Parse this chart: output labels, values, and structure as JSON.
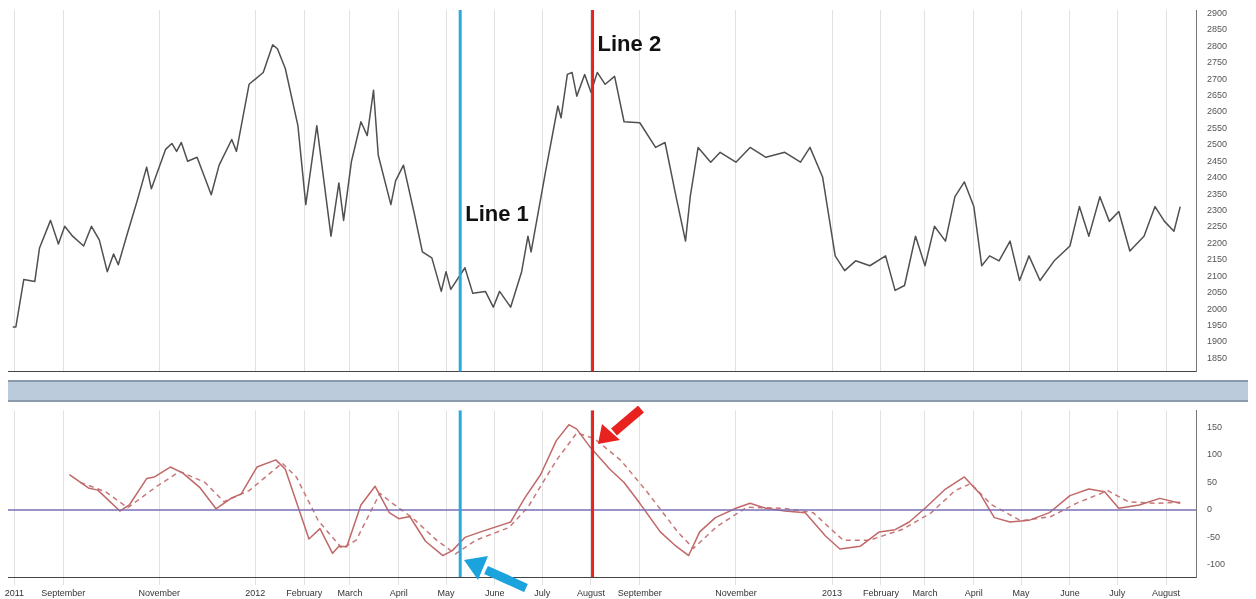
{
  "chart_data": [
    {
      "type": "line",
      "xlim": [
        "2011-07-28",
        "2013-08-20"
      ],
      "ylim": [
        1810,
        2910
      ],
      "xticks": [
        {
          "value": "2011-08-01",
          "label": null
        },
        {
          "value": "2011-09-01",
          "label": null
        },
        {
          "value": "2011-11-01",
          "label": null
        },
        {
          "value": "2012-01-01",
          "label": null
        },
        {
          "value": "2012-02-01",
          "label": null
        },
        {
          "value": "2012-03-01",
          "label": null
        },
        {
          "value": "2012-04-01",
          "label": null
        },
        {
          "value": "2012-05-01",
          "label": null
        },
        {
          "value": "2012-06-01",
          "label": null
        },
        {
          "value": "2012-07-01",
          "label": null
        },
        {
          "value": "2012-08-01",
          "label": null
        },
        {
          "value": "2012-09-01",
          "label": null
        },
        {
          "value": "2012-11-01",
          "label": null
        },
        {
          "value": "2013-01-01",
          "label": null
        },
        {
          "value": "2013-02-01",
          "label": null
        },
        {
          "value": "2013-03-01",
          "label": null
        },
        {
          "value": "2013-04-01",
          "label": null
        },
        {
          "value": "2013-05-01",
          "label": null
        },
        {
          "value": "2013-06-01",
          "label": null
        },
        {
          "value": "2013-07-01",
          "label": null
        },
        {
          "value": "2013-08-01",
          "label": null
        }
      ],
      "yticks": [
        1850,
        1900,
        1950,
        2000,
        2050,
        2100,
        2150,
        2200,
        2250,
        2300,
        2350,
        2400,
        2450,
        2500,
        2550,
        2600,
        2650,
        2700,
        2750,
        2800,
        2850,
        2900
      ],
      "tick_labels": "y",
      "grid": "x",
      "legend": false,
      "marker": "none",
      "series": [
        {
          "color": "#505050",
          "x": [
            "2011-07-31",
            "2011-08-02",
            "2011-08-07",
            "2011-08-14",
            "2011-08-17",
            "2011-08-24",
            "2011-08-29",
            "2011-09-02",
            "2011-09-07",
            "2011-09-14",
            "2011-09-19",
            "2011-09-24",
            "2011-09-29",
            "2011-10-03",
            "2011-10-06",
            "2011-10-12",
            "2011-10-18",
            "2011-10-24",
            "2011-10-27",
            "2011-11-05",
            "2011-11-09",
            "2011-11-12",
            "2011-11-15",
            "2011-11-19",
            "2011-11-25",
            "2011-12-04",
            "2011-12-09",
            "2011-12-17",
            "2011-12-20",
            "2011-12-28",
            "2012-01-06",
            "2012-01-12",
            "2012-01-15",
            "2012-01-20",
            "2012-01-28",
            "2012-02-02",
            "2012-02-09",
            "2012-02-18",
            "2012-02-23",
            "2012-02-26",
            "2012-03-02",
            "2012-03-08",
            "2012-03-12",
            "2012-03-16",
            "2012-03-19",
            "2012-03-27",
            "2012-03-30",
            "2012-04-04",
            "2012-04-11",
            "2012-04-16",
            "2012-04-22",
            "2012-04-28",
            "2012-05-01",
            "2012-05-04",
            "2012-05-13",
            "2012-05-18",
            "2012-05-26",
            "2012-05-31",
            "2012-06-04",
            "2012-06-11",
            "2012-06-18",
            "2012-06-22",
            "2012-06-24",
            "2012-07-03",
            "2012-07-11",
            "2012-07-13",
            "2012-07-17",
            "2012-07-20",
            "2012-07-23",
            "2012-07-28",
            "2012-08-01",
            "2012-08-05",
            "2012-08-10",
            "2012-08-16",
            "2012-08-22",
            "2012-09-01",
            "2012-09-11",
            "2012-09-17",
            "2012-09-24",
            "2012-09-30",
            "2012-10-03",
            "2012-10-08",
            "2012-10-16",
            "2012-10-22",
            "2012-11-01",
            "2012-11-10",
            "2012-11-20",
            "2012-12-02",
            "2012-12-12",
            "2012-12-18",
            "2012-12-26",
            "2013-01-03",
            "2013-01-09",
            "2013-01-16",
            "2013-01-25",
            "2013-02-04",
            "2013-02-10",
            "2013-02-16",
            "2013-02-23",
            "2013-03-01",
            "2013-03-07",
            "2013-03-14",
            "2013-03-20",
            "2013-03-26",
            "2013-04-01",
            "2013-04-06",
            "2013-04-11",
            "2013-04-17",
            "2013-04-24",
            "2013-04-30",
            "2013-05-06",
            "2013-05-13",
            "2013-05-22",
            "2013-06-01",
            "2013-06-07",
            "2013-06-13",
            "2013-06-20",
            "2013-06-26",
            "2013-07-02",
            "2013-07-09",
            "2013-07-18",
            "2013-07-25",
            "2013-07-31",
            "2013-08-06",
            "2013-08-10"
          ],
          "values": [
            1946,
            1946,
            2090,
            2084,
            2186,
            2270,
            2198,
            2252,
            2222,
            2192,
            2252,
            2210,
            2114,
            2168,
            2135,
            2234,
            2330,
            2432,
            2366,
            2486,
            2504,
            2480,
            2507,
            2450,
            2462,
            2348,
            2438,
            2516,
            2480,
            2684,
            2720,
            2804,
            2792,
            2732,
            2558,
            2318,
            2558,
            2222,
            2384,
            2270,
            2450,
            2570,
            2528,
            2666,
            2468,
            2318,
            2390,
            2438,
            2288,
            2174,
            2156,
            2054,
            2114,
            2060,
            2126,
            2048,
            2054,
            2006,
            2054,
            2006,
            2114,
            2222,
            2174,
            2414,
            2618,
            2582,
            2714,
            2720,
            2648,
            2714,
            2660,
            2720,
            2684,
            2708,
            2570,
            2567,
            2492,
            2507,
            2342,
            2207,
            2342,
            2492,
            2447,
            2477,
            2447,
            2492,
            2462,
            2477,
            2447,
            2492,
            2402,
            2162,
            2117,
            2147,
            2132,
            2162,
            2057,
            2072,
            2222,
            2132,
            2252,
            2207,
            2342,
            2387,
            2312,
            2132,
            2162,
            2147,
            2207,
            2087,
            2162,
            2087,
            2147,
            2192,
            2312,
            2222,
            2342,
            2267,
            2297,
            2177,
            2222,
            2312,
            2267,
            2237,
            2312
          ]
        }
      ],
      "ref_lines": [
        {
          "axis": "x",
          "value": "2012-05-10",
          "label": "Line 1",
          "color": "#2aa9e0"
        },
        {
          "axis": "x",
          "value": "2012-08-02",
          "label": "Line 2",
          "color": "#e8231f"
        }
      ]
    },
    {
      "type": "line",
      "xlim": [
        "2011-07-28",
        "2013-08-20"
      ],
      "ylim": [
        -122,
        181
      ],
      "xticks": [
        {
          "value": "2011-08-01",
          "label": "2011"
        },
        {
          "value": "2011-09-01",
          "label": "September"
        },
        {
          "value": "2011-11-01",
          "label": "November"
        },
        {
          "value": "2012-01-01",
          "label": "2012"
        },
        {
          "value": "2012-02-01",
          "label": "February"
        },
        {
          "value": "2012-03-01",
          "label": "March"
        },
        {
          "value": "2012-04-01",
          "label": "April"
        },
        {
          "value": "2012-05-01",
          "label": "May"
        },
        {
          "value": "2012-06-01",
          "label": "June"
        },
        {
          "value": "2012-07-01",
          "label": "July"
        },
        {
          "value": "2012-08-01",
          "label": "August"
        },
        {
          "value": "2012-09-01",
          "label": "September"
        },
        {
          "value": "2012-11-01",
          "label": "November"
        },
        {
          "value": "2013-01-01",
          "label": "2013"
        },
        {
          "value": "2013-02-01",
          "label": "February"
        },
        {
          "value": "2013-03-01",
          "label": "March"
        },
        {
          "value": "2013-04-01",
          "label": "April"
        },
        {
          "value": "2013-05-01",
          "label": "May"
        },
        {
          "value": "2013-06-01",
          "label": "June"
        },
        {
          "value": "2013-07-01",
          "label": "July"
        },
        {
          "value": "2013-08-01",
          "label": "August"
        }
      ],
      "yticks": [
        -100,
        -50,
        0,
        50,
        100,
        150
      ],
      "grid": "x",
      "legend": false,
      "marker": "none",
      "series": [
        {
          "color": "#c06868",
          "line_style": "solid",
          "x": [
            "2011-09-05",
            "2011-09-17",
            "2011-09-23",
            "2011-10-07",
            "2011-10-13",
            "2011-10-24",
            "2011-10-29",
            "2011-11-08",
            "2011-11-16",
            "2011-11-27",
            "2011-12-07",
            "2011-12-17",
            "2011-12-23",
            "2012-01-02",
            "2012-01-14",
            "2012-01-20",
            "2012-01-29",
            "2012-02-04",
            "2012-02-11",
            "2012-02-19",
            "2012-02-23",
            "2012-02-28",
            "2012-03-08",
            "2012-03-17",
            "2012-03-26",
            "2012-04-01",
            "2012-04-08",
            "2012-04-18",
            "2012-04-29",
            "2012-05-05",
            "2012-05-13",
            "2012-05-23",
            "2012-06-11",
            "2012-06-20",
            "2012-06-30",
            "2012-07-10",
            "2012-07-18",
            "2012-07-23",
            "2012-07-31",
            "2012-08-13",
            "2012-08-22",
            "2012-09-01",
            "2012-09-14",
            "2012-09-24",
            "2012-10-02",
            "2012-10-09",
            "2012-10-19",
            "2012-11-01",
            "2012-11-10",
            "2012-11-20",
            "2012-12-02",
            "2012-12-15",
            "2012-12-28",
            "2013-01-06",
            "2013-01-19",
            "2013-01-31",
            "2013-02-10",
            "2013-02-19",
            "2013-03-01",
            "2013-03-14",
            "2013-03-26",
            "2013-04-05",
            "2013-04-14",
            "2013-04-24",
            "2013-05-06",
            "2013-05-19",
            "2013-06-01",
            "2013-06-13",
            "2013-06-23",
            "2013-07-02",
            "2013-07-15",
            "2013-07-28",
            "2013-08-10"
          ],
          "values": [
            64,
            40,
            36,
            -2,
            9,
            57,
            60,
            78,
            67,
            40,
            2,
            22,
            29,
            78,
            91,
            74,
            -2,
            -53,
            -34,
            -79,
            -66,
            -67,
            9,
            43,
            -5,
            -16,
            -12,
            -57,
            -83,
            -74,
            -50,
            -40,
            -22,
            22,
            64,
            126,
            155,
            147,
            116,
            74,
            50,
            12,
            -40,
            -66,
            -83,
            -40,
            -14,
            3,
            12,
            3,
            -2,
            -5,
            -48,
            -71,
            -66,
            -40,
            -36,
            -22,
            3,
            38,
            60,
            29,
            -14,
            -22,
            -19,
            -5,
            26,
            38,
            33,
            3,
            9,
            21,
            12
          ]
        },
        {
          "color": "#c87878",
          "line_style": "dashed",
          "x": [
            "2011-09-12",
            "2011-09-28",
            "2011-10-12",
            "2011-10-30",
            "2011-11-14",
            "2011-11-30",
            "2011-12-12",
            "2011-12-28",
            "2012-01-18",
            "2012-01-27",
            "2012-02-10",
            "2012-02-25",
            "2012-03-05",
            "2012-03-20",
            "2012-03-28",
            "2012-04-10",
            "2012-04-25",
            "2012-05-07",
            "2012-05-20",
            "2012-06-10",
            "2012-06-22",
            "2012-07-10",
            "2012-07-23",
            "2012-08-03",
            "2012-08-20",
            "2012-09-05",
            "2012-09-25",
            "2012-10-05",
            "2012-10-20",
            "2012-11-08",
            "2012-12-01",
            "2012-12-20",
            "2013-01-08",
            "2013-01-25",
            "2013-02-15",
            "2013-03-05",
            "2013-03-20",
            "2013-03-30",
            "2013-04-12",
            "2013-05-01",
            "2013-05-20",
            "2013-06-05",
            "2013-06-25",
            "2013-07-08",
            "2013-07-25",
            "2013-08-10"
          ],
          "values": [
            50,
            33,
            4,
            42,
            70,
            50,
            15,
            35,
            85,
            60,
            -20,
            -70,
            -55,
            30,
            12,
            -15,
            -55,
            -80,
            -55,
            -32,
            5,
            90,
            140,
            130,
            90,
            35,
            -40,
            -70,
            -30,
            5,
            3,
            -5,
            -55,
            -55,
            -35,
            -5,
            35,
            48,
            10,
            -20,
            -12,
            12,
            35,
            15,
            12,
            14
          ]
        }
      ],
      "ref_lines": [
        {
          "axis": "y",
          "value": 0,
          "color": "#7a6fb5"
        },
        {
          "axis": "x",
          "value": "2012-05-10",
          "color": "#2aa9e0"
        },
        {
          "axis": "x",
          "value": "2012-08-02",
          "color": "#e8231f"
        }
      ]
    }
  ]
}
